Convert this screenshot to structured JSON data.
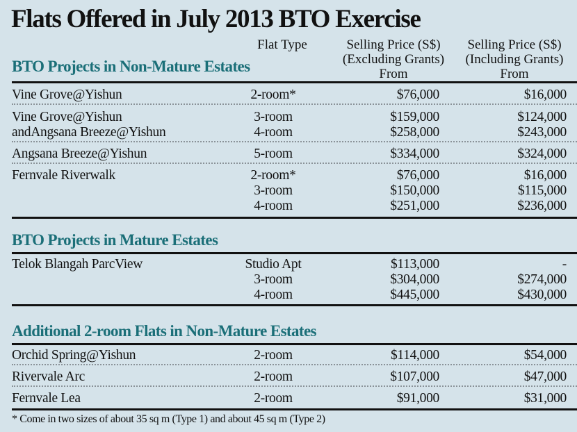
{
  "title": "Flats Offered in July 2013 BTO Exercise",
  "columns": {
    "flat_type": "Flat Type",
    "excl": [
      "Selling Price (S$)",
      "(Excluding Grants)",
      "From"
    ],
    "incl": [
      "Selling Price (S$)",
      "(Including Grants)",
      "From"
    ]
  },
  "sections": [
    {
      "heading": "BTO Projects in Non-Mature Estates",
      "groups": [
        {
          "rows": [
            {
              "name": "Vine Grove@Yishun",
              "type": "2-room*",
              "excl": "$76,000",
              "incl": "$16,000"
            }
          ]
        },
        {
          "rows": [
            {
              "name": "Vine Grove@Yishun",
              "type": "3-room",
              "excl": "$159,000",
              "incl": "$124,000"
            },
            {
              "name": "andAngsana Breeze@Yishun",
              "type": "4-room",
              "excl": "$258,000",
              "incl": "$243,000"
            }
          ]
        },
        {
          "rows": [
            {
              "name": "Angsana Breeze@Yishun",
              "type": "5-room",
              "excl": "$334,000",
              "incl": "$324,000"
            }
          ]
        },
        {
          "rows": [
            {
              "name": "Fernvale Riverwalk",
              "type": "2-room*",
              "excl": "$76,000",
              "incl": "$16,000"
            },
            {
              "name": "",
              "type": "3-room",
              "excl": "$150,000",
              "incl": "$115,000"
            },
            {
              "name": "",
              "type": "4-room",
              "excl": "$251,000",
              "incl": "$236,000"
            }
          ]
        }
      ]
    },
    {
      "heading": "BTO Projects in Mature Estates",
      "groups": [
        {
          "rows": [
            {
              "name": "Telok Blangah ParcView",
              "type": "Studio Apt",
              "excl": "$113,000",
              "incl": "-"
            },
            {
              "name": "",
              "type": "3-room",
              "excl": "$304,000",
              "incl": "$274,000"
            },
            {
              "name": "",
              "type": "4-room",
              "excl": "$445,000",
              "incl": "$430,000"
            }
          ]
        }
      ]
    },
    {
      "heading": "Additional 2-room Flats in Non-Mature Estates",
      "groups": [
        {
          "rows": [
            {
              "name": "Orchid Spring@Yishun",
              "type": "2-room",
              "excl": "$114,000",
              "incl": "$54,000"
            }
          ]
        },
        {
          "rows": [
            {
              "name": "Rivervale Arc",
              "type": "2-room",
              "excl": "$107,000",
              "incl": "$47,000"
            }
          ]
        },
        {
          "rows": [
            {
              "name": "Fernvale Lea",
              "type": "2-room",
              "excl": "$91,000",
              "incl": "$31,000"
            }
          ]
        }
      ]
    }
  ],
  "footnote": "* Come in two sizes of about 35 sq m (Type 1) and about 45 sq m (Type 2)",
  "colors": {
    "background": "#d5e3ea",
    "section_heading": "#1b6f78"
  }
}
